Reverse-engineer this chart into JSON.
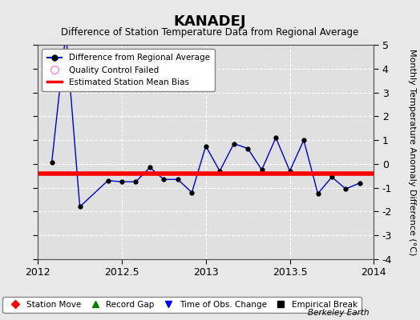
{
  "title": "KANADEJ",
  "subtitle": "Difference of Station Temperature Data from Regional Average",
  "ylabel": "Monthly Temperature Anomaly Difference (°C)",
  "watermark": "Berkeley Earth",
  "xlim": [
    2012,
    2014
  ],
  "ylim": [
    -4,
    5
  ],
  "yticks": [
    -4,
    -3,
    -2,
    -1,
    0,
    1,
    2,
    3,
    4,
    5
  ],
  "xticks": [
    2012,
    2012.5,
    2013,
    2013.5,
    2014
  ],
  "background_color": "#e8e8e8",
  "plot_bg_color": "#e0e0e0",
  "grid_color": "#c8c8c8",
  "mean_bias": -0.4,
  "line_x": [
    2012.083,
    2012.167,
    2012.25,
    2012.417,
    2012.5,
    2012.583,
    2012.667,
    2012.75,
    2012.833,
    2012.917,
    2013.0,
    2013.083,
    2013.167,
    2013.25,
    2013.333,
    2013.417,
    2013.5,
    2013.583,
    2013.667,
    2013.75,
    2013.833,
    2013.917
  ],
  "line_y": [
    0.05,
    5.5,
    -1.8,
    -0.7,
    -0.75,
    -0.75,
    -0.15,
    -0.65,
    -0.65,
    -1.2,
    0.75,
    -0.3,
    0.85,
    0.65,
    -0.25,
    1.1,
    -0.3,
    1.0,
    -1.25,
    -0.55,
    -1.05,
    -0.8
  ],
  "line_color": "#0000cc",
  "marker_color": "#000000",
  "bias_color": "#ff0000",
  "bias_linewidth": 4.0
}
